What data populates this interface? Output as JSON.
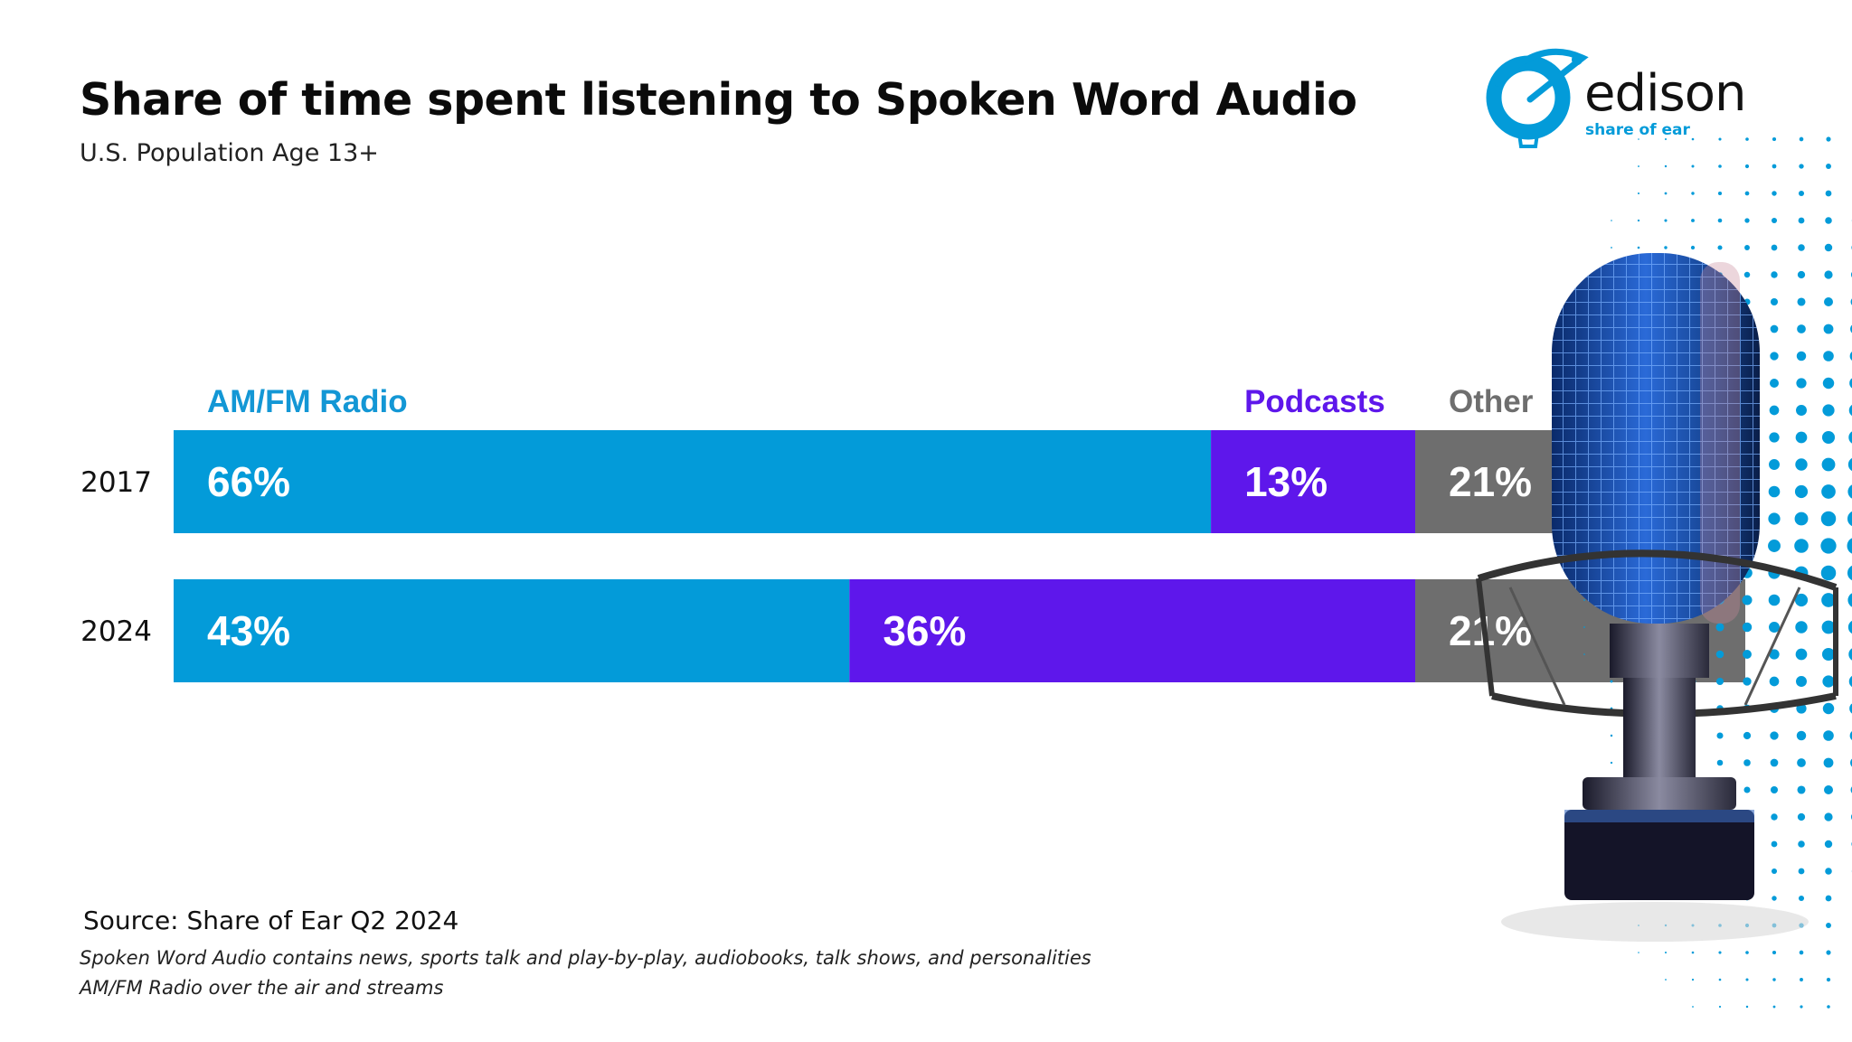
{
  "header": {
    "title": "Share of time spent listening to Spoken Word Audio",
    "subtitle": "U.S. Population Age 13+"
  },
  "logo": {
    "name": "edison",
    "tagline": "share of ear"
  },
  "chart_data": {
    "type": "bar",
    "orientation": "horizontal",
    "stacked": true,
    "title": "Share of time spent listening to Spoken Word Audio",
    "subtitle": "U.S. Population Age 13+",
    "categories": [
      "2017",
      "2024"
    ],
    "series": [
      {
        "name": "AM/FM Radio",
        "values": [
          66,
          43
        ],
        "labels": [
          "66%",
          "43%"
        ],
        "color": "#039BD9"
      },
      {
        "name": "Podcasts",
        "values": [
          13,
          36
        ],
        "labels": [
          "13%",
          "36%"
        ],
        "color": "#5E17EB"
      },
      {
        "name": "Other",
        "values": [
          21,
          21
        ],
        "labels": [
          "21%",
          "21%"
        ],
        "color": "#6E6E6E"
      }
    ],
    "xlim": [
      0,
      100
    ],
    "unit": "%",
    "legend_position": "top"
  },
  "colors": {
    "brand_blue": "#039BD9",
    "legend_am_fm": "#1397D5",
    "legend_podcasts": "#5E17EB",
    "legend_other": "#6E6E6E"
  },
  "footer": {
    "source": "Source: Share of Ear Q2 2024",
    "note1": "Spoken Word Audio contains news, sports talk and play-by-play, audiobooks, talk shows, and personalities",
    "note2": "AM/FM Radio over the air and streams"
  }
}
